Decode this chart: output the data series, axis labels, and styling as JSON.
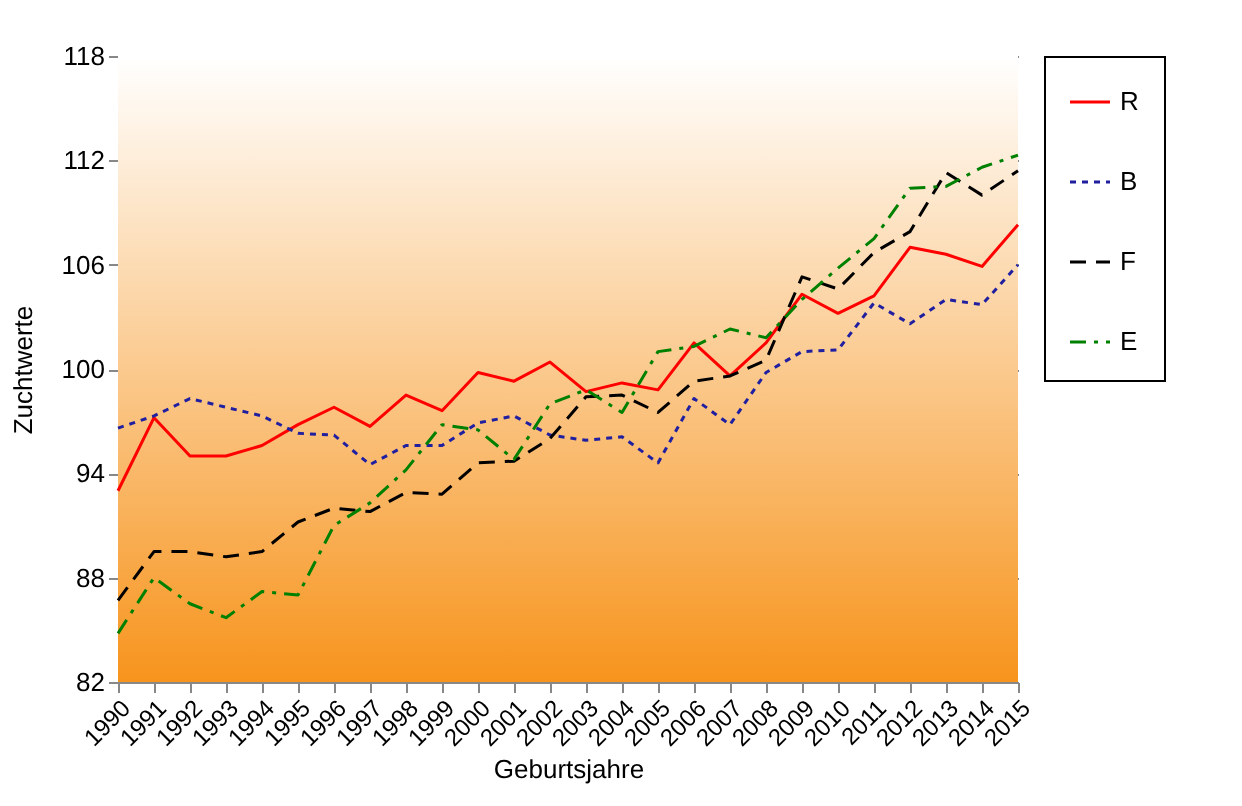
{
  "chart_data": {
    "type": "line",
    "xlabel": "Geburtsjahre",
    "ylabel": "Zuchtwerte",
    "categories": [
      "1990",
      "1991",
      "1992",
      "1993",
      "1994",
      "1995",
      "1996",
      "1997",
      "1998",
      "1999",
      "2000",
      "2001",
      "2002",
      "2003",
      "2004",
      "2005",
      "2006",
      "2007",
      "2008",
      "2009",
      "2010",
      "2011",
      "2012",
      "2013",
      "2014",
      "2015"
    ],
    "series": [
      {
        "name": "R",
        "color": "#ff0000",
        "line_style": "solid",
        "values": [
          93.0,
          97.2,
          95.0,
          95.0,
          95.6,
          96.8,
          97.8,
          96.7,
          98.5,
          97.6,
          99.8,
          99.3,
          100.4,
          98.7,
          99.2,
          98.8,
          101.5,
          99.6,
          101.5,
          104.3,
          103.2,
          104.2,
          107.0,
          106.6,
          105.9,
          108.3
        ]
      },
      {
        "name": "B",
        "color": "#1f1fa0",
        "line_style": "dotted",
        "values": [
          96.6,
          97.3,
          98.3,
          97.8,
          97.3,
          96.3,
          96.2,
          94.5,
          95.6,
          95.6,
          96.9,
          97.3,
          96.2,
          95.9,
          96.1,
          94.6,
          98.3,
          96.8,
          99.8,
          101.0,
          101.1,
          103.8,
          102.6,
          104.0,
          103.7,
          106.0
        ]
      },
      {
        "name": "F",
        "color": "#000000",
        "line_style": "dashed",
        "values": [
          86.7,
          89.5,
          89.5,
          89.2,
          89.5,
          91.2,
          92.0,
          91.8,
          92.9,
          92.8,
          94.6,
          94.7,
          96.0,
          98.4,
          98.5,
          97.5,
          99.3,
          99.6,
          100.5,
          105.3,
          104.6,
          106.7,
          107.9,
          111.3,
          110.0,
          111.4
        ]
      },
      {
        "name": "E",
        "color": "#008000",
        "line_style": "dashdot",
        "values": [
          84.8,
          88.0,
          86.5,
          85.7,
          87.2,
          87.0,
          91.0,
          92.3,
          94.2,
          96.8,
          96.5,
          94.8,
          98.0,
          98.8,
          97.5,
          101.0,
          101.3,
          102.3,
          101.8,
          104.0,
          105.8,
          107.5,
          110.4,
          110.5,
          111.6,
          112.3
        ]
      }
    ],
    "ylim": [
      82,
      118
    ],
    "yticks": [
      82,
      88,
      94,
      100,
      106,
      112,
      118
    ],
    "grid": "y",
    "legend": "right",
    "marker": "none"
  }
}
